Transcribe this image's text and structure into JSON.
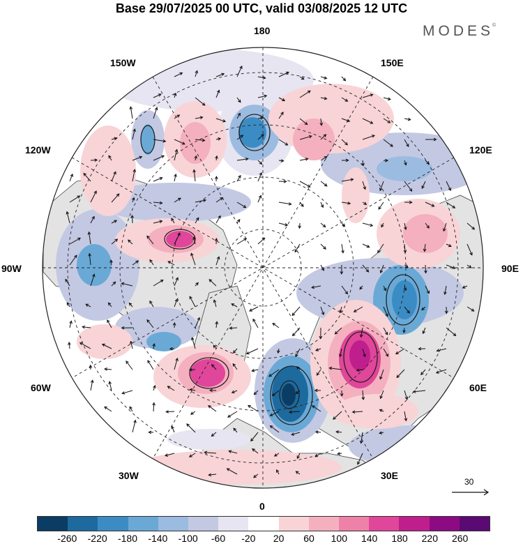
{
  "title": "Base 29/07/2025 00 UTC, valid 03/08/2025 12 UTC",
  "brand": {
    "name": "MODES",
    "mark": "©"
  },
  "longitude_labels": {
    "lon_180": "180",
    "lon_150e": "150E",
    "lon_120e": "120E",
    "lon_90e": "90E",
    "lon_60e": "60E",
    "lon_30e": "30E",
    "lon_0": "0",
    "lon_30w": "30W",
    "lon_60w": "60W",
    "lon_90w": "90W",
    "lon_120w": "120W",
    "lon_150w": "150W"
  },
  "reference_vector": {
    "label": "30"
  },
  "colorbar": {
    "colors": [
      "#0b3c63",
      "#1d6a9e",
      "#3b8cc4",
      "#6aa9d6",
      "#9cbbe0",
      "#c3c9e3",
      "#e7e5f1",
      "#ffffff",
      "#f8d4d7",
      "#f4b0bf",
      "#ee81a8",
      "#e0469a",
      "#bf1f8d",
      "#8c0b83",
      "#5b0a74"
    ],
    "ticks": [
      "-260",
      "-220",
      "-180",
      "-140",
      "-100",
      "-60",
      "-20",
      "20",
      "60",
      "100",
      "140",
      "180",
      "220",
      "260"
    ]
  }
}
